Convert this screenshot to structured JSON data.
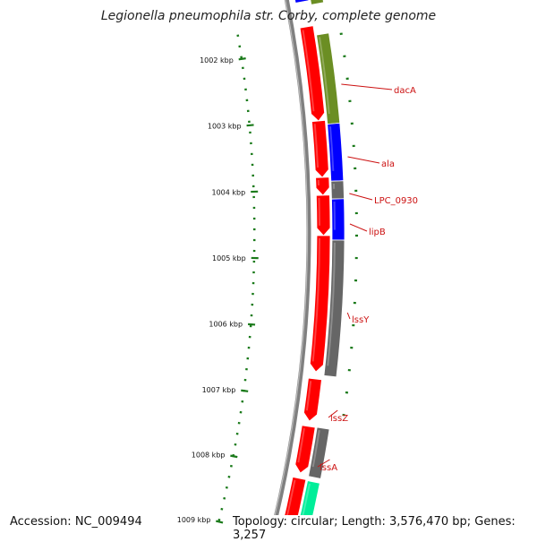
{
  "title": "Legionella pneumophila str. Corby, complete genome",
  "accession": "Accession: NC_009494",
  "topology": "Topology: circular; Length: 3,576,470 bp; Genes: 3,257",
  "ticks": [
    {
      "label": "1002 kbp"
    },
    {
      "label": "1003 kbp"
    },
    {
      "label": "1004 kbp"
    },
    {
      "label": "1005 kbp"
    },
    {
      "label": "1006 kbp"
    },
    {
      "label": "1007 kbp"
    },
    {
      "label": "1008 kbp"
    },
    {
      "label": "1009 kbp"
    }
  ],
  "gene_labels": [
    {
      "name": "dacA"
    },
    {
      "name": "ala"
    },
    {
      "name": "LPC_0930"
    },
    {
      "name": "lipB"
    },
    {
      "name": "lssY"
    },
    {
      "name": "lssZ"
    },
    {
      "name": "lssA"
    }
  ],
  "colors": {
    "cds": "#ff0000",
    "blue": "#0000ff",
    "olive": "#6b8e23",
    "gray": "#666666",
    "teal": "#00ee99",
    "backbone": "#808080",
    "ruler": "#1a7a1a",
    "label": "#cc1111"
  }
}
